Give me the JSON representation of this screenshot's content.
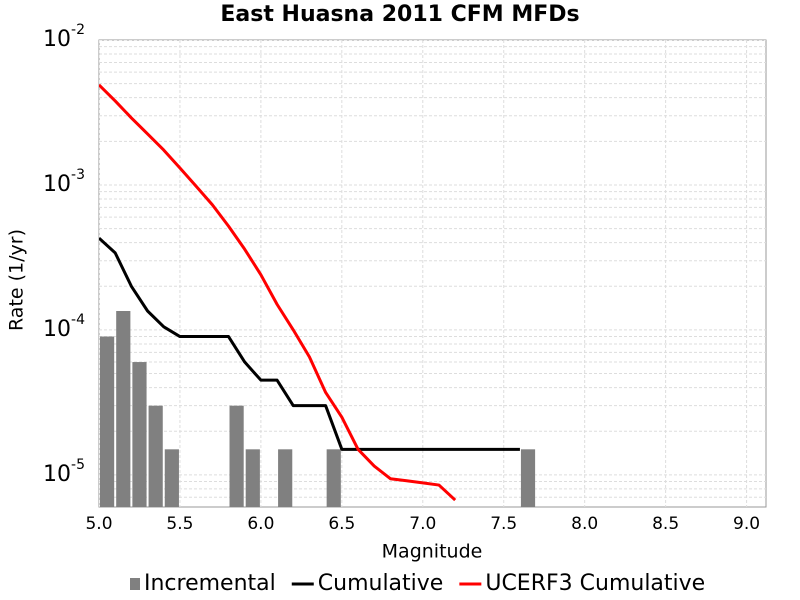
{
  "chart_data": {
    "type": "line",
    "title": "East Huasna 2011 CFM MFDs",
    "x_label": "Magnitude",
    "y_label": "Rate (1/yr)",
    "log_y": true,
    "grid": true,
    "legend": "bottom",
    "xlim": [
      5.0,
      9.12
    ],
    "ylim": [
      6e-06,
      0.01
    ],
    "xticks": [
      {
        "value": 5,
        "label": "5.0"
      },
      5.5,
      {
        "value": 6,
        "label": "6.0"
      },
      6.5,
      {
        "value": 7,
        "label": "7.0"
      },
      7.5,
      {
        "value": 8,
        "label": "8.0"
      },
      8.5,
      {
        "value": 9,
        "label": "9.0"
      }
    ],
    "yticks": [
      {
        "value": 1e-05,
        "label": "10",
        "exponent": "-5"
      },
      {
        "value": 0.0001,
        "label": "10",
        "exponent": "-4"
      },
      {
        "value": 0.001,
        "label": "10",
        "exponent": "-3"
      },
      {
        "value": 0.01,
        "label": "10",
        "exponent": "-2"
      }
    ],
    "series": [
      {
        "name": "Incremental",
        "type": "bar",
        "color": "#808080",
        "x": [
          5.05,
          5.15,
          5.25,
          5.35,
          5.45,
          5.85,
          5.95,
          6.15,
          6.45,
          7.65
        ],
        "values": [
          9e-05,
          0.000135,
          6e-05,
          3e-05,
          1.5e-05,
          3e-05,
          1.5e-05,
          1.5e-05,
          1.5e-05,
          1.5e-05
        ]
      },
      {
        "name": "Cumulative",
        "type": "line",
        "color": "#000000",
        "x": [
          5.0,
          5.1,
          5.2,
          5.3,
          5.4,
          5.5,
          5.8,
          5.9,
          6.0,
          6.1,
          6.2,
          6.4,
          6.5,
          7.6
        ],
        "values": [
          0.00043,
          0.00034,
          0.0002,
          0.000135,
          0.000105,
          9e-05,
          9e-05,
          6e-05,
          4.5e-05,
          4.5e-05,
          3e-05,
          3e-05,
          1.5e-05,
          1.5e-05
        ]
      },
      {
        "name": "UCERF3 Cumulative",
        "type": "line",
        "color": "#ff0000",
        "x": [
          5.0,
          5.1,
          5.2,
          5.3,
          5.4,
          5.5,
          5.6,
          5.7,
          5.8,
          5.9,
          6.0,
          6.1,
          6.2,
          6.3,
          6.4,
          6.5,
          6.6,
          6.7,
          6.8,
          6.9,
          7.0,
          7.1,
          7.2
        ],
        "values": [
          0.0049,
          0.0038,
          0.0029,
          0.00225,
          0.00174,
          0.00131,
          0.00098,
          0.00073,
          0.00052,
          0.00036,
          0.00024,
          0.00015,
          0.0001,
          6.5e-05,
          3.7e-05,
          2.5e-05,
          1.5e-05,
          1.15e-05,
          9.4e-06,
          9.1e-06,
          8.8e-06,
          8.5e-06,
          6.7e-06
        ]
      }
    ]
  }
}
